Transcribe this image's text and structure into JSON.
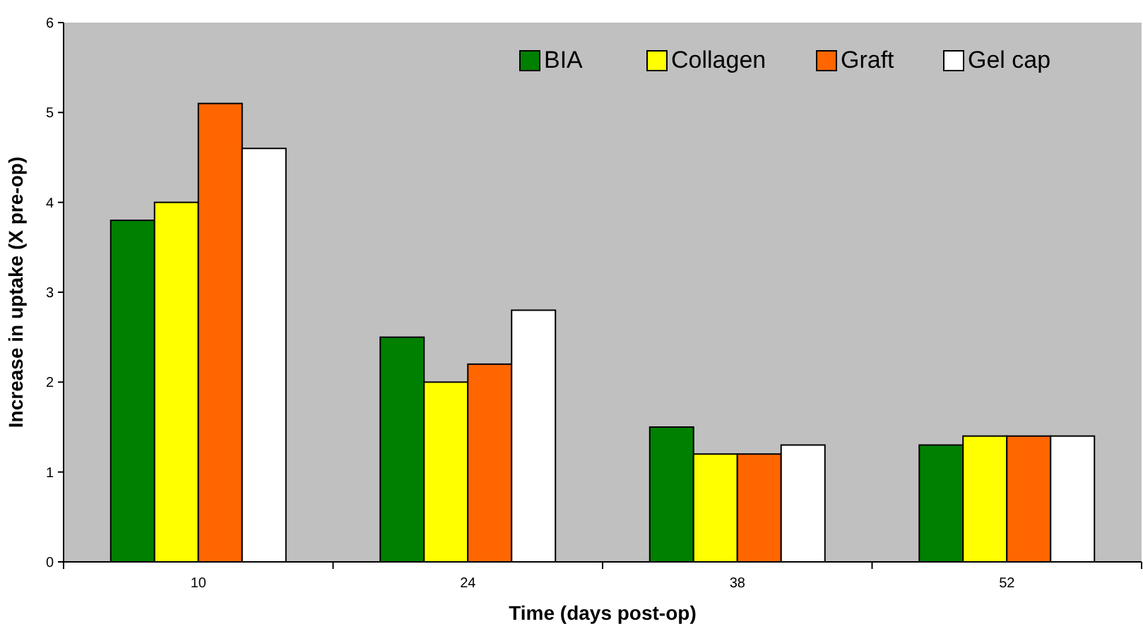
{
  "chart_data": {
    "type": "bar",
    "xlabel": "Time (days post-op)",
    "ylabel": "Increase in uptake (X pre-op)",
    "categories": [
      "10",
      "24",
      "38",
      "52"
    ],
    "series": [
      {
        "name": "BIA",
        "color": "#008000",
        "values": [
          3.8,
          2.5,
          1.5,
          1.3
        ]
      },
      {
        "name": "Collagen",
        "color": "#ffff00",
        "values": [
          4.0,
          2.0,
          1.2,
          1.4
        ]
      },
      {
        "name": "Graft",
        "color": "#ff6600",
        "values": [
          5.1,
          2.2,
          1.2,
          1.4
        ]
      },
      {
        "name": "Gel cap",
        "color": "#ffffff",
        "values": [
          4.6,
          2.8,
          1.3,
          1.4
        ]
      }
    ],
    "ylim": [
      0,
      6
    ],
    "yticks": [
      0,
      1,
      2,
      3,
      4,
      5,
      6
    ],
    "legend": "top right"
  }
}
